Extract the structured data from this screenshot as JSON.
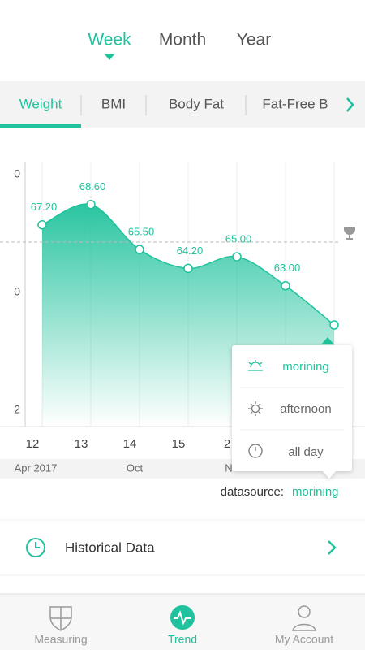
{
  "period_tabs": [
    "Week",
    "Month",
    "Year"
  ],
  "metric_tabs": [
    "Weight",
    "BMI",
    "Body Fat",
    "Fat-Free B"
  ],
  "chart_data": {
    "type": "area",
    "categories": [
      "12",
      "13",
      "14",
      "15",
      "2",
      null,
      null
    ],
    "values": [
      67.2,
      68.6,
      65.5,
      64.2,
      65.0,
      63.0,
      60.3
    ],
    "value_labels": [
      "67.20",
      "68.60",
      "65.50",
      "64.20",
      "65.00",
      "63.00",
      null
    ],
    "ylim": [
      53.3,
      71.5
    ],
    "y_axis_labels": [
      "0",
      "0",
      "2"
    ],
    "months": [
      "Apr 2017",
      "Oct",
      "N"
    ],
    "color": "#1fc29c"
  },
  "popup": [
    "morining",
    "afternoon",
    "all day"
  ],
  "datasource": {
    "label": "datasource:",
    "value": "morining"
  },
  "historical": "Historical Data",
  "nav": [
    "Measuring",
    "Trend",
    "My Account"
  ]
}
